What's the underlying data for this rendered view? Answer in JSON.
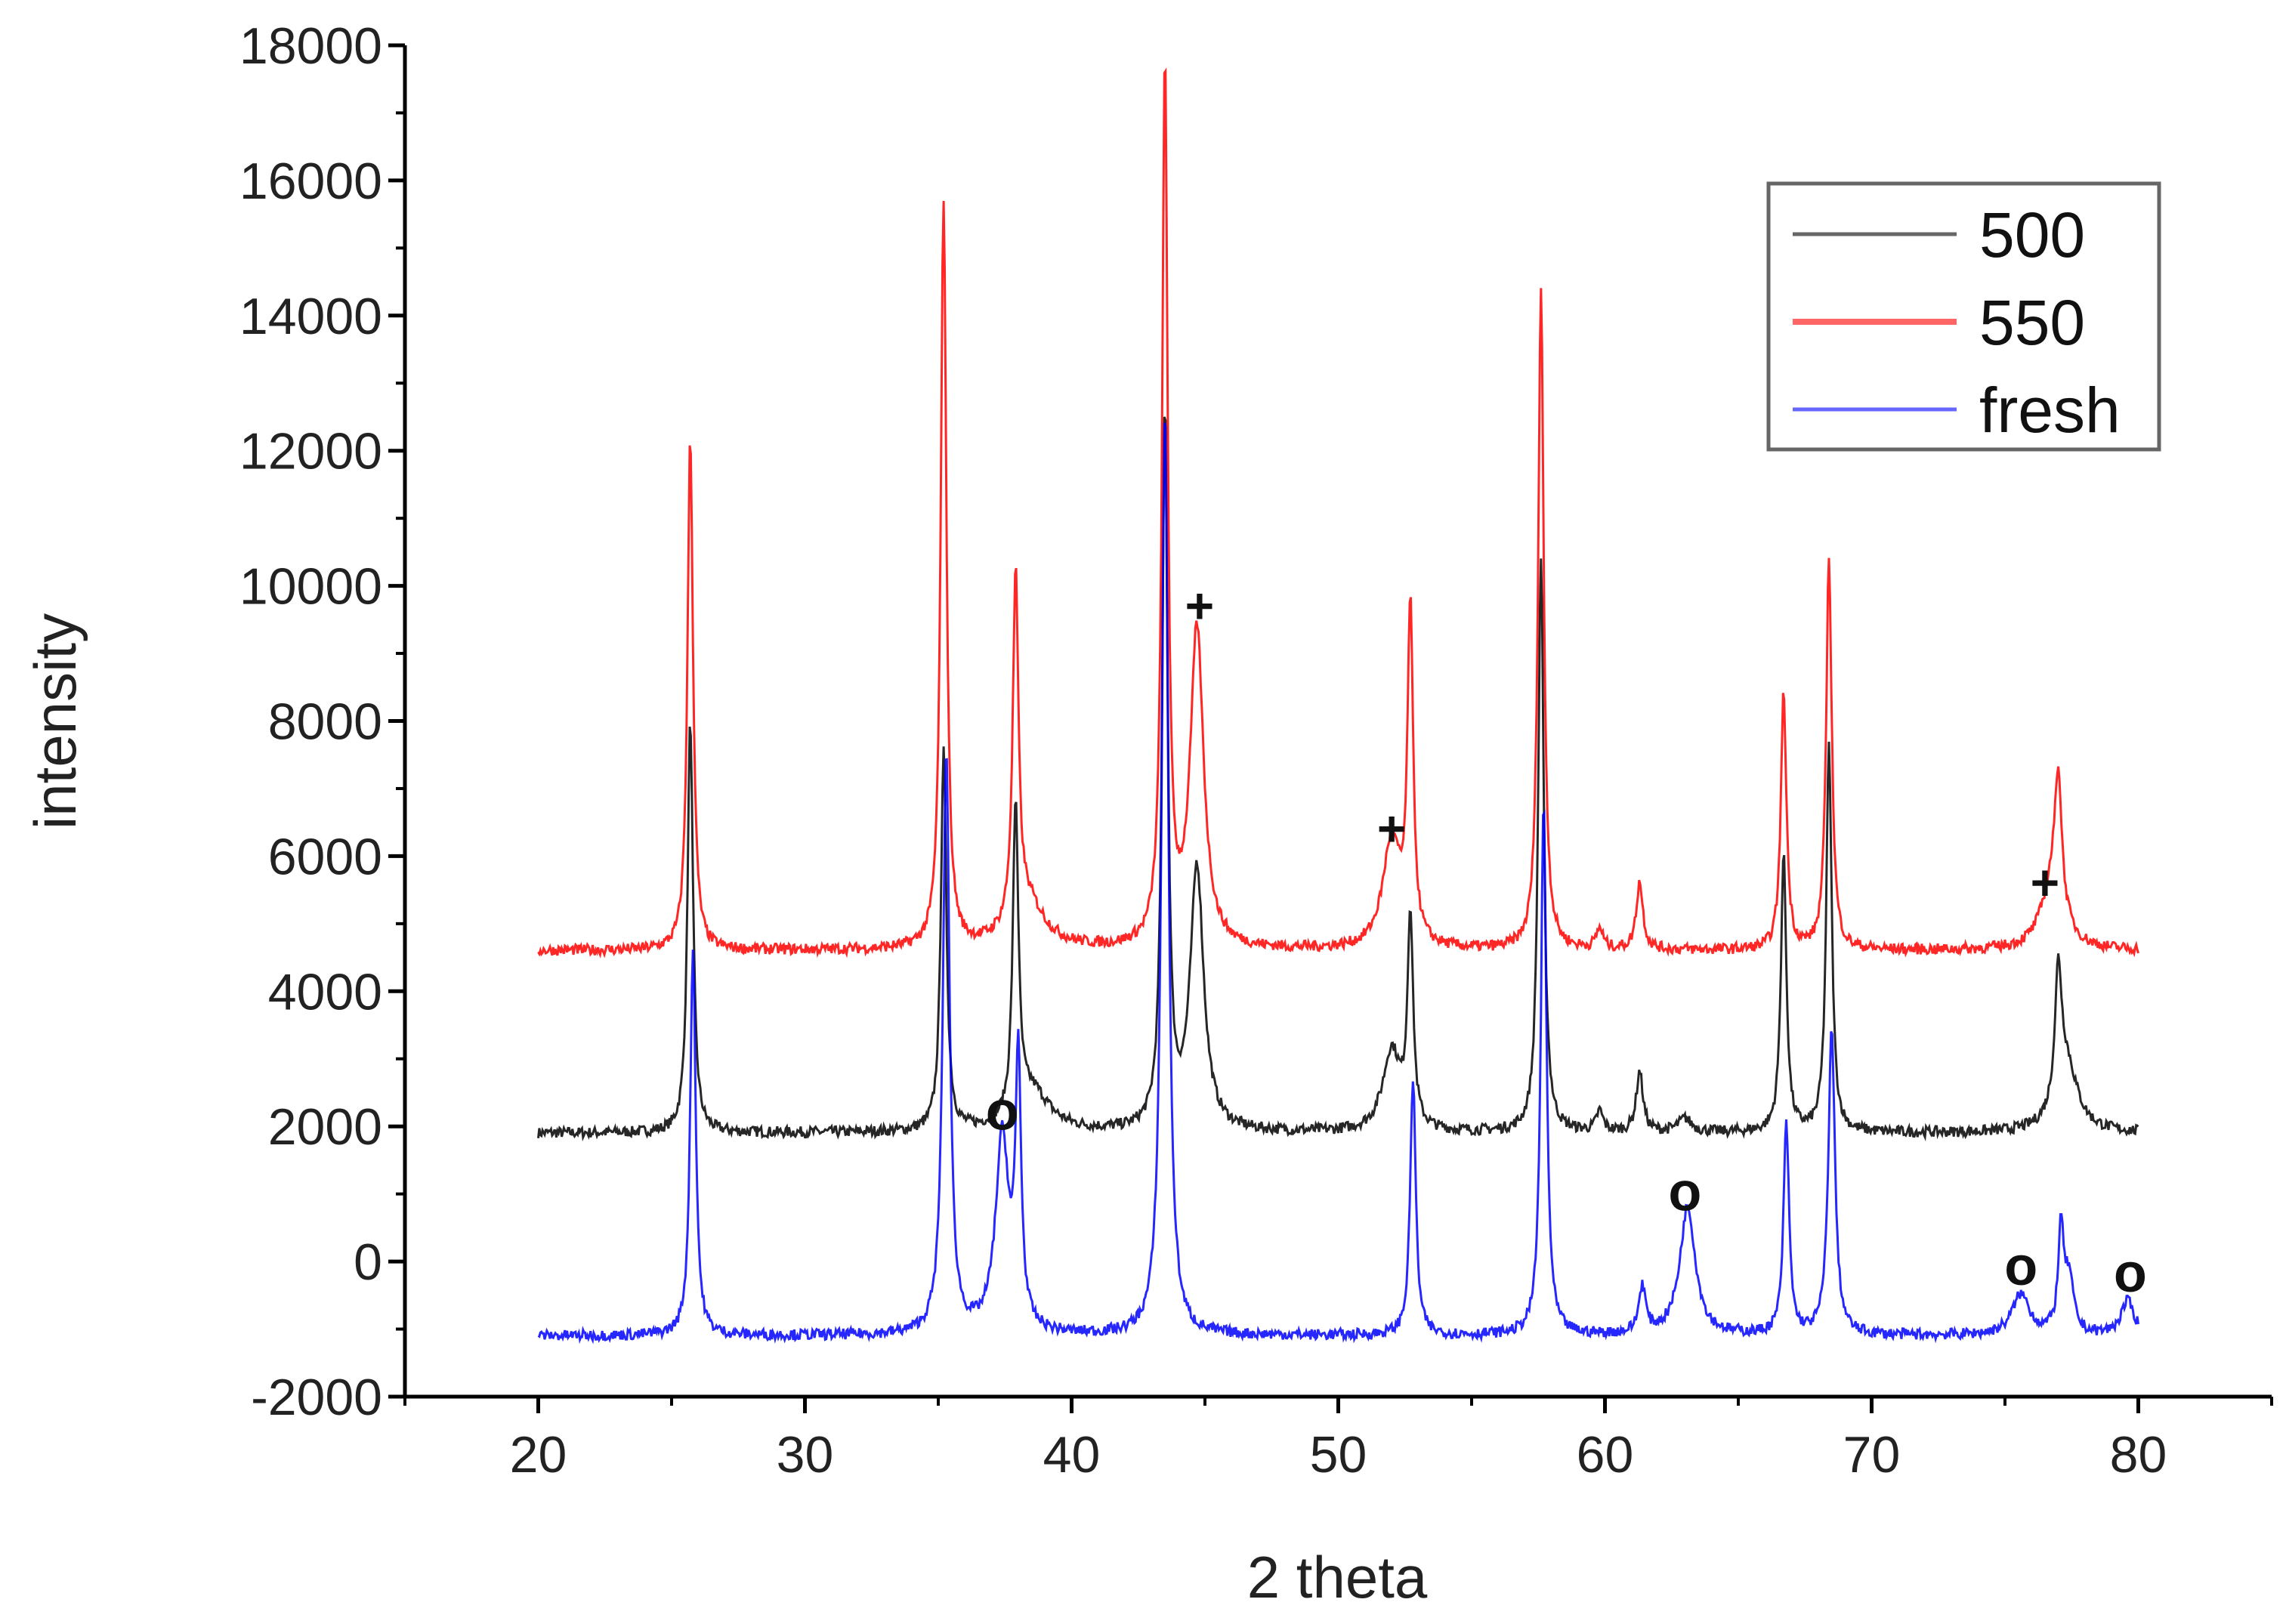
{
  "chart_data": {
    "type": "line",
    "title": "",
    "xlabel": "2 theta",
    "ylabel": "intensity",
    "xlim": [
      15,
      85
    ],
    "ylim": [
      -2000,
      18000
    ],
    "xticks": [
      20,
      30,
      40,
      50,
      60,
      70,
      80
    ],
    "yticks": [
      -2000,
      0,
      2000,
      4000,
      6000,
      8000,
      10000,
      12000,
      14000,
      16000,
      18000
    ],
    "x_range": [
      20,
      80
    ],
    "grid": false,
    "legend_position": "top-right",
    "series": [
      {
        "name": "500",
        "color": "#000000",
        "baseline": 1900,
        "peaks": [
          [
            25.7,
            8000,
            0.25
          ],
          [
            35.2,
            7500,
            0.25
          ],
          [
            37.9,
            6500,
            0.25
          ],
          [
            38.5,
            2500,
            1.6
          ],
          [
            43.5,
            12500,
            0.25
          ],
          [
            44.7,
            5800,
            0.6
          ],
          [
            52.0,
            3100,
            0.8
          ],
          [
            52.7,
            5000,
            0.25
          ],
          [
            57.6,
            10400,
            0.25
          ],
          [
            59.8,
            2200,
            0.3
          ],
          [
            61.3,
            2800,
            0.3
          ],
          [
            63.0,
            2100,
            0.6
          ],
          [
            66.7,
            6000,
            0.25
          ],
          [
            68.4,
            7600,
            0.25
          ],
          [
            77.0,
            3800,
            0.3
          ],
          [
            77.3,
            2900,
            1.0
          ]
        ]
      },
      {
        "name": "550",
        "color": "#ff0000",
        "baseline": 4600,
        "peaks": [
          [
            25.7,
            12200,
            0.25
          ],
          [
            35.2,
            15700,
            0.25
          ],
          [
            37.9,
            9700,
            0.25
          ],
          [
            38.3,
            5300,
            1.6
          ],
          [
            43.5,
            17600,
            0.25
          ],
          [
            44.7,
            9300,
            0.6
          ],
          [
            52.0,
            6200,
            0.8
          ],
          [
            52.7,
            9500,
            0.25
          ],
          [
            57.6,
            14400,
            0.25
          ],
          [
            59.8,
            4900,
            0.3
          ],
          [
            61.3,
            5600,
            0.3
          ],
          [
            66.7,
            8400,
            0.25
          ],
          [
            68.4,
            10400,
            0.25
          ],
          [
            77.0,
            6500,
            0.3
          ],
          [
            76.8,
            5600,
            1.0
          ]
        ]
      },
      {
        "name": "fresh",
        "color": "#0000ff",
        "baseline": -1100,
        "peaks": [
          [
            25.8,
            4600,
            0.25
          ],
          [
            35.3,
            7500,
            0.3
          ],
          [
            37.4,
            1800,
            0.6
          ],
          [
            38.0,
            2800,
            0.25
          ],
          [
            43.5,
            12600,
            0.3
          ],
          [
            52.8,
            2700,
            0.25
          ],
          [
            57.7,
            6800,
            0.25
          ],
          [
            61.4,
            -400,
            0.3
          ],
          [
            63.1,
            800,
            0.7
          ],
          [
            66.8,
            2000,
            0.25
          ],
          [
            68.5,
            3400,
            0.3
          ],
          [
            75.6,
            -500,
            0.8
          ],
          [
            77.1,
            400,
            0.25
          ],
          [
            77.4,
            -300,
            0.4
          ],
          [
            79.6,
            -600,
            0.6
          ]
        ]
      }
    ],
    "annotations": [
      {
        "text": "+",
        "x": 44.8,
        "y": 9700
      },
      {
        "text": "+",
        "x": 52.0,
        "y": 6400
      },
      {
        "text": "+",
        "x": 76.5,
        "y": 5600
      },
      {
        "text": "o",
        "x": 37.4,
        "y": 2200
      },
      {
        "text": "o",
        "x": 63.0,
        "y": 1000
      },
      {
        "text": "o",
        "x": 75.6,
        "y": -100
      },
      {
        "text": "o",
        "x": 79.7,
        "y": -200
      }
    ]
  }
}
